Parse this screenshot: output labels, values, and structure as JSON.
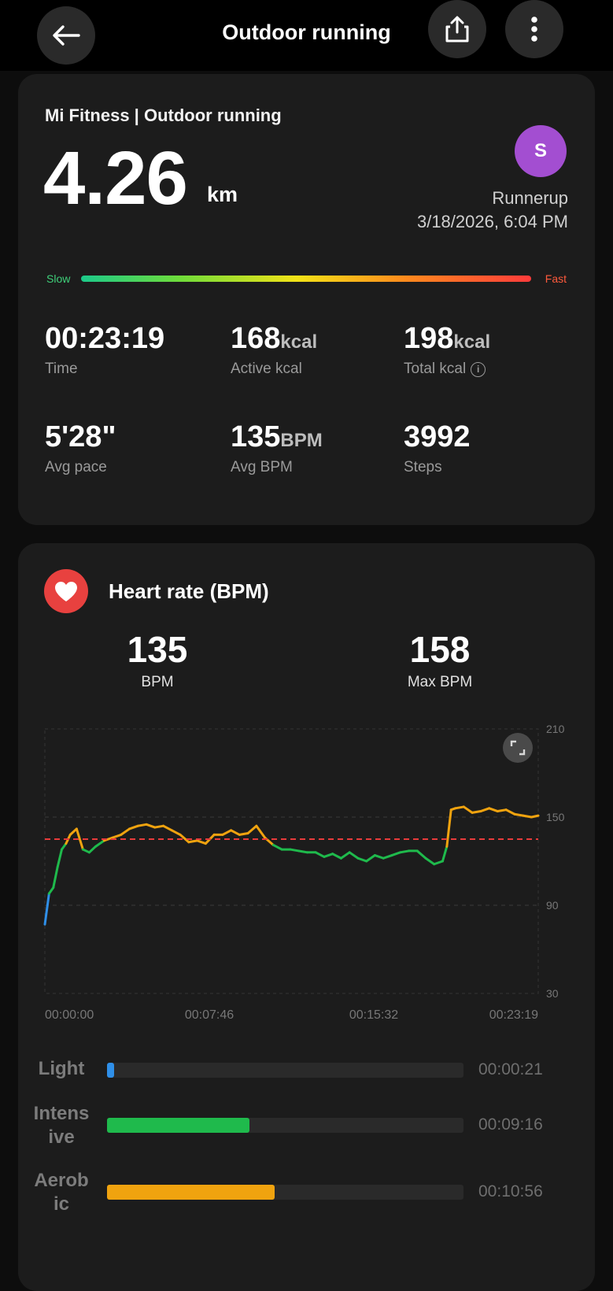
{
  "header": {
    "title": "Outdoor running",
    "back_icon": "arrow-left-icon",
    "share_icon": "share-icon",
    "more_icon": "more-vertical-icon"
  },
  "summary": {
    "app_title": "Mi Fitness | Outdoor running",
    "distance": "4.26",
    "distance_unit": "km",
    "avatar_letter": "S",
    "user_name": "Runnerup",
    "datetime": "3/18/2026, 6:04 PM",
    "scale_slow": "Slow",
    "scale_fast": "Fast",
    "metrics": [
      {
        "value": "00:23:19",
        "unit": "",
        "label": "Time"
      },
      {
        "value": "168",
        "unit": "kcal",
        "label": "Active kcal"
      },
      {
        "value": "198",
        "unit": "kcal",
        "label": "Total kcal"
      },
      {
        "value": "5'28\"",
        "unit": "",
        "label": "Avg pace"
      },
      {
        "value": "135",
        "unit": "BPM",
        "label": "Avg BPM"
      },
      {
        "value": "3992",
        "unit": "",
        "label": "Steps"
      }
    ]
  },
  "heart_rate": {
    "title": "Heart rate (BPM)",
    "avg_value": "135",
    "avg_label": "BPM",
    "max_value": "158",
    "max_label": "Max BPM",
    "zones": [
      {
        "label": "Light",
        "time": "00:00:21",
        "fraction": 0.02,
        "color": "#2f8fe8"
      },
      {
        "label": "Intens ive",
        "time": "00:09:16",
        "fraction": 0.4,
        "color": "#1fba4c"
      },
      {
        "label": "Aerob ic",
        "time": "00:10:56",
        "fraction": 0.47,
        "color": "#f0a30f"
      }
    ]
  },
  "chart_data": {
    "type": "line",
    "title": "",
    "xlabel": "",
    "ylabel": "",
    "ylim": [
      30,
      210
    ],
    "y_ticks": [
      210,
      150,
      90,
      30
    ],
    "x_tick_labels": [
      "00:00:00",
      "00:07:46",
      "00:15:32",
      "00:23:19"
    ],
    "x_range_minutes": [
      0,
      23.32
    ],
    "avg_line": 135,
    "grid": "dashed horizontal at ticks",
    "zone_colors": {
      "light": "#2f8fe8",
      "intensive": "#1fba4c",
      "aerobic": "#f0a30f"
    },
    "series": [
      {
        "x": [
          0.0,
          0.2,
          0.4,
          0.6,
          0.8,
          1.0,
          1.2,
          1.5,
          1.8,
          2.1,
          2.4,
          2.8,
          3.2,
          3.6,
          4.0,
          4.4,
          4.8,
          5.2,
          5.6,
          6.0,
          6.4,
          6.8,
          7.2,
          7.6,
          8.0,
          8.4,
          8.8,
          9.2,
          9.6,
          10.0,
          10.4,
          10.8,
          11.2,
          11.6,
          12.0,
          12.4,
          12.8,
          13.2,
          13.6,
          14.0,
          14.4,
          14.8,
          15.2,
          15.6,
          16.0,
          16.4,
          16.8,
          17.2,
          17.6,
          18.0,
          18.4,
          18.8,
          19.0,
          19.2,
          19.4,
          19.8,
          20.2,
          20.6,
          21.0,
          21.4,
          21.8,
          22.2,
          22.6,
          23.0,
          23.32
        ],
        "y": [
          77,
          98,
          102,
          116,
          128,
          132,
          138,
          142,
          128,
          126,
          130,
          134,
          136,
          138,
          142,
          144,
          145,
          143,
          144,
          141,
          138,
          133,
          134,
          132,
          138,
          138,
          141,
          138,
          139,
          144,
          136,
          131,
          128,
          128,
          127,
          126,
          126,
          123,
          125,
          122,
          126,
          122,
          120,
          124,
          122,
          124,
          126,
          127,
          127,
          122,
          118,
          120,
          130,
          155,
          156,
          157,
          153,
          154,
          156,
          154,
          155,
          152,
          151,
          150,
          151
        ]
      }
    ]
  }
}
